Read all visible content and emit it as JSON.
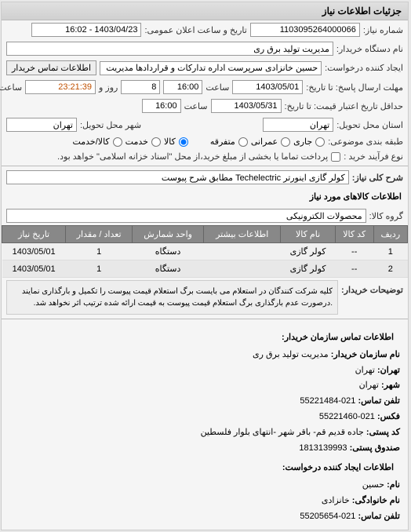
{
  "panel": {
    "title": "جزئیات اطلاعات نیاز"
  },
  "fields": {
    "req_no_label": "شماره نیاز:",
    "req_no": "1103095264000066",
    "pub_date_label": "تاریخ و ساعت اعلان عمومی:",
    "pub_date": "1403/04/23 - 16:02",
    "buyer_org_label": "نام دستگاه خریدار:",
    "buyer_org": "مدیریت تولید برق ری",
    "creator_label": "ایجاد کننده درخواست:",
    "creator": "حسین خانزادی سرپرست اداره تدارکات و قراردادها مدیریت تولید برق ری",
    "contact_btn": "اطلاعات تماس خریدار",
    "deadline_label": "مهلت ارسال پاسخ: تا تاریخ:",
    "deadline_date": "1403/05/01",
    "deadline_time_label": "ساعت",
    "deadline_time": "16:00",
    "days_left": "8",
    "days_label": "روز و",
    "time_left": "23:21:39",
    "time_left_label": "ساعت باقی مانده",
    "validity_label": "حداقل تاریخ اعتبار قیمت: تا تاریخ:",
    "validity_date": "1403/05/31",
    "validity_time": "16:00",
    "delivery_province_label": "استان محل تحویل:",
    "delivery_province": "تهران",
    "delivery_city_label": "شهر محل تحویل:",
    "delivery_city": "تهران",
    "budget_label": "طبقه بندی موضوعی:",
    "budget_opts": {
      "a": "جاری",
      "b": "عمرانی",
      "c": "متفرقه"
    },
    "item_type_label": "",
    "item_opts": {
      "goods": "کالا",
      "service": "خدمت",
      "goods_service": "کالا/خدمت"
    },
    "purchase_type_label": "نوع فرآیند خرید :",
    "purchase_note": "پرداخت تماما یا بخشی از مبلغ خرید،از محل \"اسناد خزانه اسلامی\" خواهد بود.",
    "desc_label": "شرح کلی نیاز:",
    "desc": "کولر گازی اینورتر Techelectric مطابق شرح پیوست"
  },
  "items_section": {
    "title": "اطلاعات کالاهای مورد نیاز",
    "group_label": "گروه کالا:",
    "group": "محصولات الکترونیکی",
    "columns": [
      "ردیف",
      "کد کالا",
      "نام کالا",
      "اطلاعات بیشتر",
      "واحد شمارش",
      "تعداد / مقدار",
      "تاریخ نیاز"
    ],
    "rows": [
      [
        "1",
        "--",
        "کولر گازی",
        "",
        "دستگاه",
        "1",
        "1403/05/01"
      ],
      [
        "2",
        "--",
        "کولر گازی",
        "",
        "دستگاه",
        "1",
        "1403/05/01"
      ]
    ]
  },
  "buyer_note": {
    "label": "توضیحات خریدار:",
    "text": "کلیه شرکت کنندگان در استعلام می بایست برگ استعلام قیمت پیوست را تکمیل و بارگذاری نمایند .درصورت عدم بارگذاری برگ استعلام قیمت پیوست به قیمت ارائه شده ترتیب اثر نخواهد شد."
  },
  "contact": {
    "section1_title": "اطلاعات تماس سازمان خریدار:",
    "org_label": "نام سازمان خریدار:",
    "org": "مدیریت تولید برق ری",
    "province_label": "تهران:",
    "province": "تهران",
    "city_label": "شهر:",
    "city": "تهران",
    "phone_label": "تلفن تماس:",
    "phone": "021-55221484",
    "fax_label": "فکس:",
    "fax": "021-55221460",
    "postcode_label": "کد پستی:",
    "postcode": "جاده قدیم قم- باقر شهر -انتهای بلوار فلسطین",
    "mailbox_label": "صندوق پستی:",
    "mailbox": "1813139993",
    "section2_title": "اطلاعات ایجاد کننده درخواست:",
    "fname_label": "نام:",
    "fname": "حسین",
    "lname_label": "نام خانوادگی:",
    "lname": "خانزادی",
    "cphone_label": "تلفن تماس:",
    "cphone": "021-55205654"
  }
}
